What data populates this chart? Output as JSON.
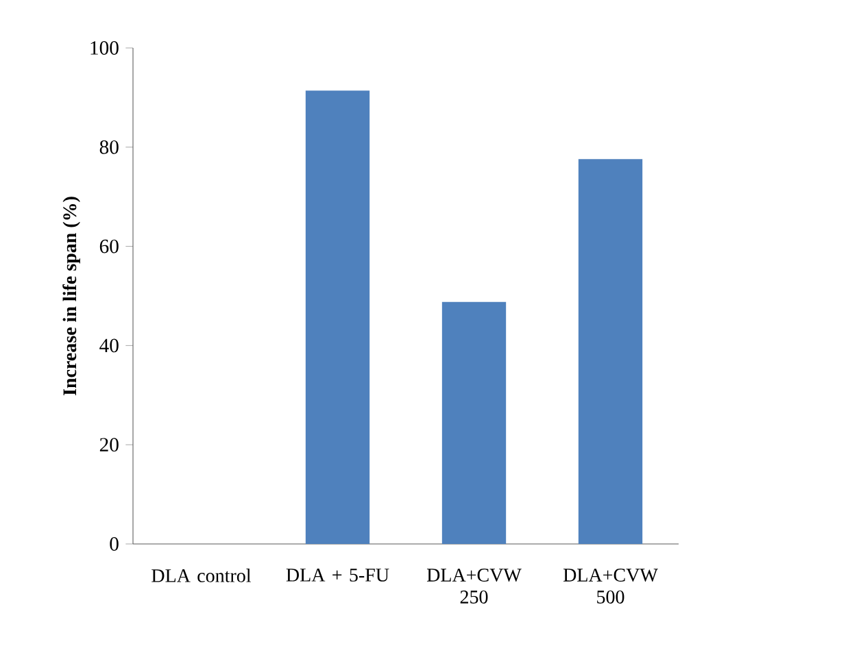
{
  "chart_data": {
    "type": "bar",
    "ylabel": "Increase in life span (%)",
    "categories": [
      "DLA control",
      "DLA + 5-FU",
      "DLA+CVW 250",
      "DLA+CVW 500"
    ],
    "values": [
      0,
      91.4,
      48.8,
      77.6
    ],
    "color": "#4f81bd",
    "ylim": [
      0,
      100
    ],
    "yticks": [
      0,
      20,
      40,
      60,
      80,
      100
    ],
    "grid": false
  }
}
